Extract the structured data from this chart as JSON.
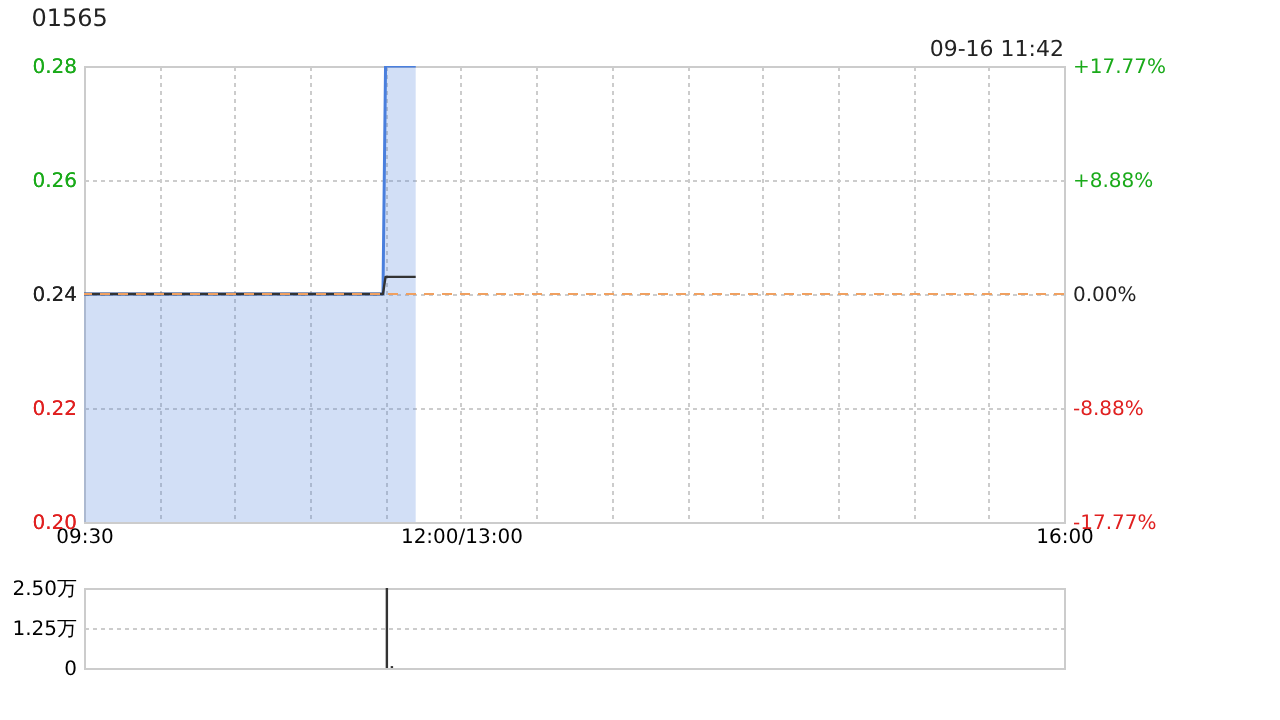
{
  "chart_data": [
    {
      "type": "area",
      "title": "01565",
      "annotations": [
        "09-16 11:42"
      ],
      "xlim": [
        9.5,
        16
      ],
      "xticks": [
        {
          "value": 9.5,
          "label": "09:30"
        },
        {
          "value": 10,
          "label": null
        },
        {
          "value": 10.5,
          "label": null
        },
        {
          "value": 11,
          "label": null
        },
        {
          "value": 11.5,
          "label": null
        },
        {
          "value": 12,
          "label": "12:00/13:00"
        },
        {
          "value": 12.5,
          "label": null
        },
        {
          "value": 13,
          "label": null
        },
        {
          "value": 13.5,
          "label": null
        },
        {
          "value": 14,
          "label": null
        },
        {
          "value": 14.5,
          "label": null
        },
        {
          "value": 15,
          "label": null
        },
        {
          "value": 15.5,
          "label": null
        },
        {
          "value": 16,
          "label": "16:00"
        }
      ],
      "ylim": [
        0.2,
        0.28
      ],
      "yticks": [
        {
          "value": 0.2,
          "label": "0.20"
        },
        0.22,
        0.24,
        0.26,
        0.28
      ],
      "y2lim": [
        -17.77,
        17.77
      ],
      "y2ticks": [
        {
          "value": -17.77,
          "label": "-17.77%"
        },
        {
          "value": -8.88,
          "label": "-8.88%"
        },
        {
          "value": 0,
          "label": "0.00%"
        },
        {
          "value": 8.88,
          "label": "+8.88%"
        },
        {
          "value": 17.77,
          "label": "+17.77%"
        }
      ],
      "grid": true,
      "ref_lines": [
        {
          "axis": "y2",
          "value": 0,
          "color": "#f0a060",
          "line_style": "dashed"
        }
      ],
      "series": [
        {
          "type": "area",
          "color": "#4a7fdd",
          "x": [
            9.5,
            11.483,
            11.5,
            11.7
          ],
          "values": [
            0.24,
            0.24,
            0.28,
            0.28
          ]
        },
        {
          "type": "line",
          "color": "#333333",
          "x": [
            9.5,
            11.483,
            11.5,
            11.7
          ],
          "values": [
            0.24,
            0.24,
            0.243,
            0.243
          ]
        }
      ]
    },
    {
      "type": "bar",
      "xlim": [
        9.5,
        16
      ],
      "ylim": [
        0,
        2.5
      ],
      "yticks": [
        0,
        {
          "value": 1.25,
          "label": "1.25万"
        },
        {
          "value": 2.5,
          "label": "2.50万"
        }
      ],
      "grid": "y",
      "tick_labels": "y",
      "series": [
        {
          "color": "#333333",
          "x": [
            11.483,
            11.517
          ],
          "values": [
            2.5,
            0.06
          ]
        }
      ]
    }
  ]
}
